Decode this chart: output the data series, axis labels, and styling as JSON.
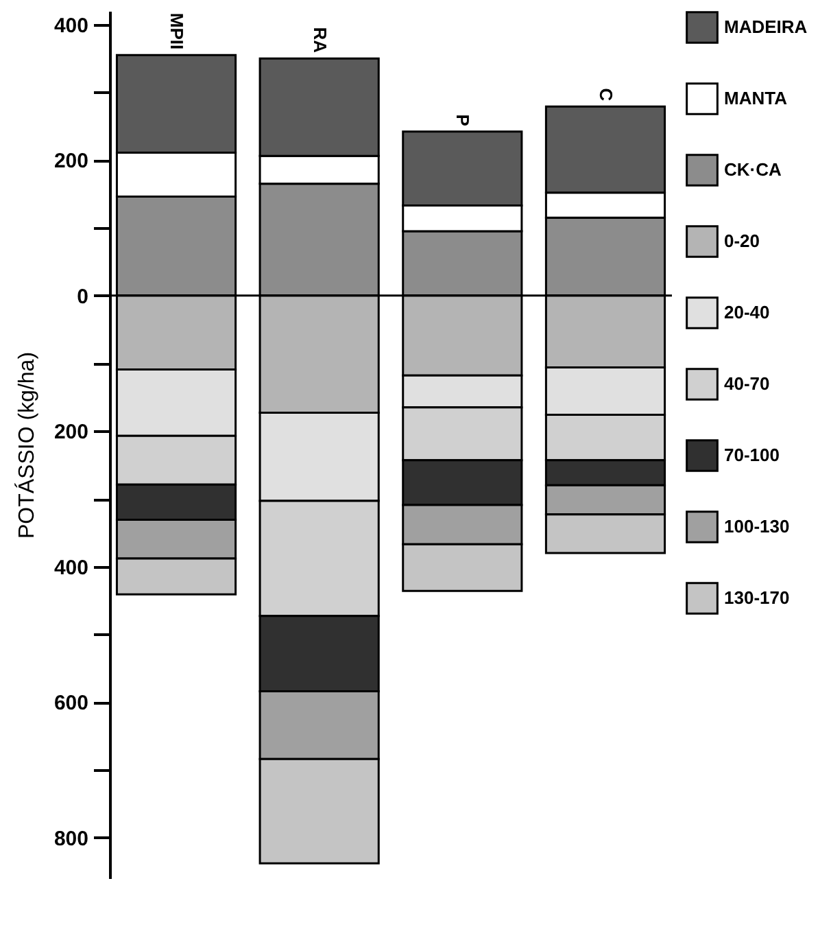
{
  "chart_data": {
    "type": "bar",
    "stacked": true,
    "ylabel": "POTÁSSIO (kg/ha)",
    "categories": [
      "MPII",
      "RA",
      "P",
      "C"
    ],
    "series": [
      {
        "name": "CK·CA",
        "color": "#8c8c8c",
        "values": [
          146,
          165,
          95,
          115
        ]
      },
      {
        "name": "MANTA",
        "color": "#ffffff",
        "values": [
          65,
          41,
          38,
          37
        ]
      },
      {
        "name": "MADEIRA",
        "color": "#5a5a5a",
        "values": [
          144,
          144,
          109,
          127
        ]
      },
      {
        "name": "0-20",
        "color": "#b4b4b4",
        "values": [
          -109,
          -173,
          -118,
          -106
        ]
      },
      {
        "name": "20-40",
        "color": "#e0e0e0",
        "values": [
          -98,
          -130,
          -47,
          -70
        ]
      },
      {
        "name": "40-70",
        "color": "#d0d0d0",
        "values": [
          -72,
          -170,
          -78,
          -67
        ]
      },
      {
        "name": "70-100",
        "color": "#303030",
        "values": [
          -52,
          -111,
          -66,
          -37
        ]
      },
      {
        "name": "100-130",
        "color": "#a0a0a0",
        "values": [
          -57,
          -100,
          -58,
          -43
        ]
      },
      {
        "name": "130-170",
        "color": "#c4c4c4",
        "values": [
          -53,
          -154,
          -69,
          -57
        ]
      }
    ],
    "ylim": [
      -860,
      420
    ],
    "yticks": [
      400,
      {
        "value": 300,
        "label": null
      },
      200,
      {
        "value": 100,
        "label": null
      },
      0,
      {
        "value": -100,
        "label": null
      },
      {
        "value": -200,
        "label": "200"
      },
      {
        "value": -300,
        "label": null
      },
      {
        "value": -400,
        "label": "400"
      },
      {
        "value": -500,
        "label": null
      },
      {
        "value": -600,
        "label": "600"
      },
      {
        "value": -700,
        "label": null
      },
      {
        "value": -800,
        "label": "800"
      }
    ],
    "ref_lines": [
      {
        "axis": "y",
        "value": 0
      }
    ],
    "legend": "right",
    "grid": false
  }
}
